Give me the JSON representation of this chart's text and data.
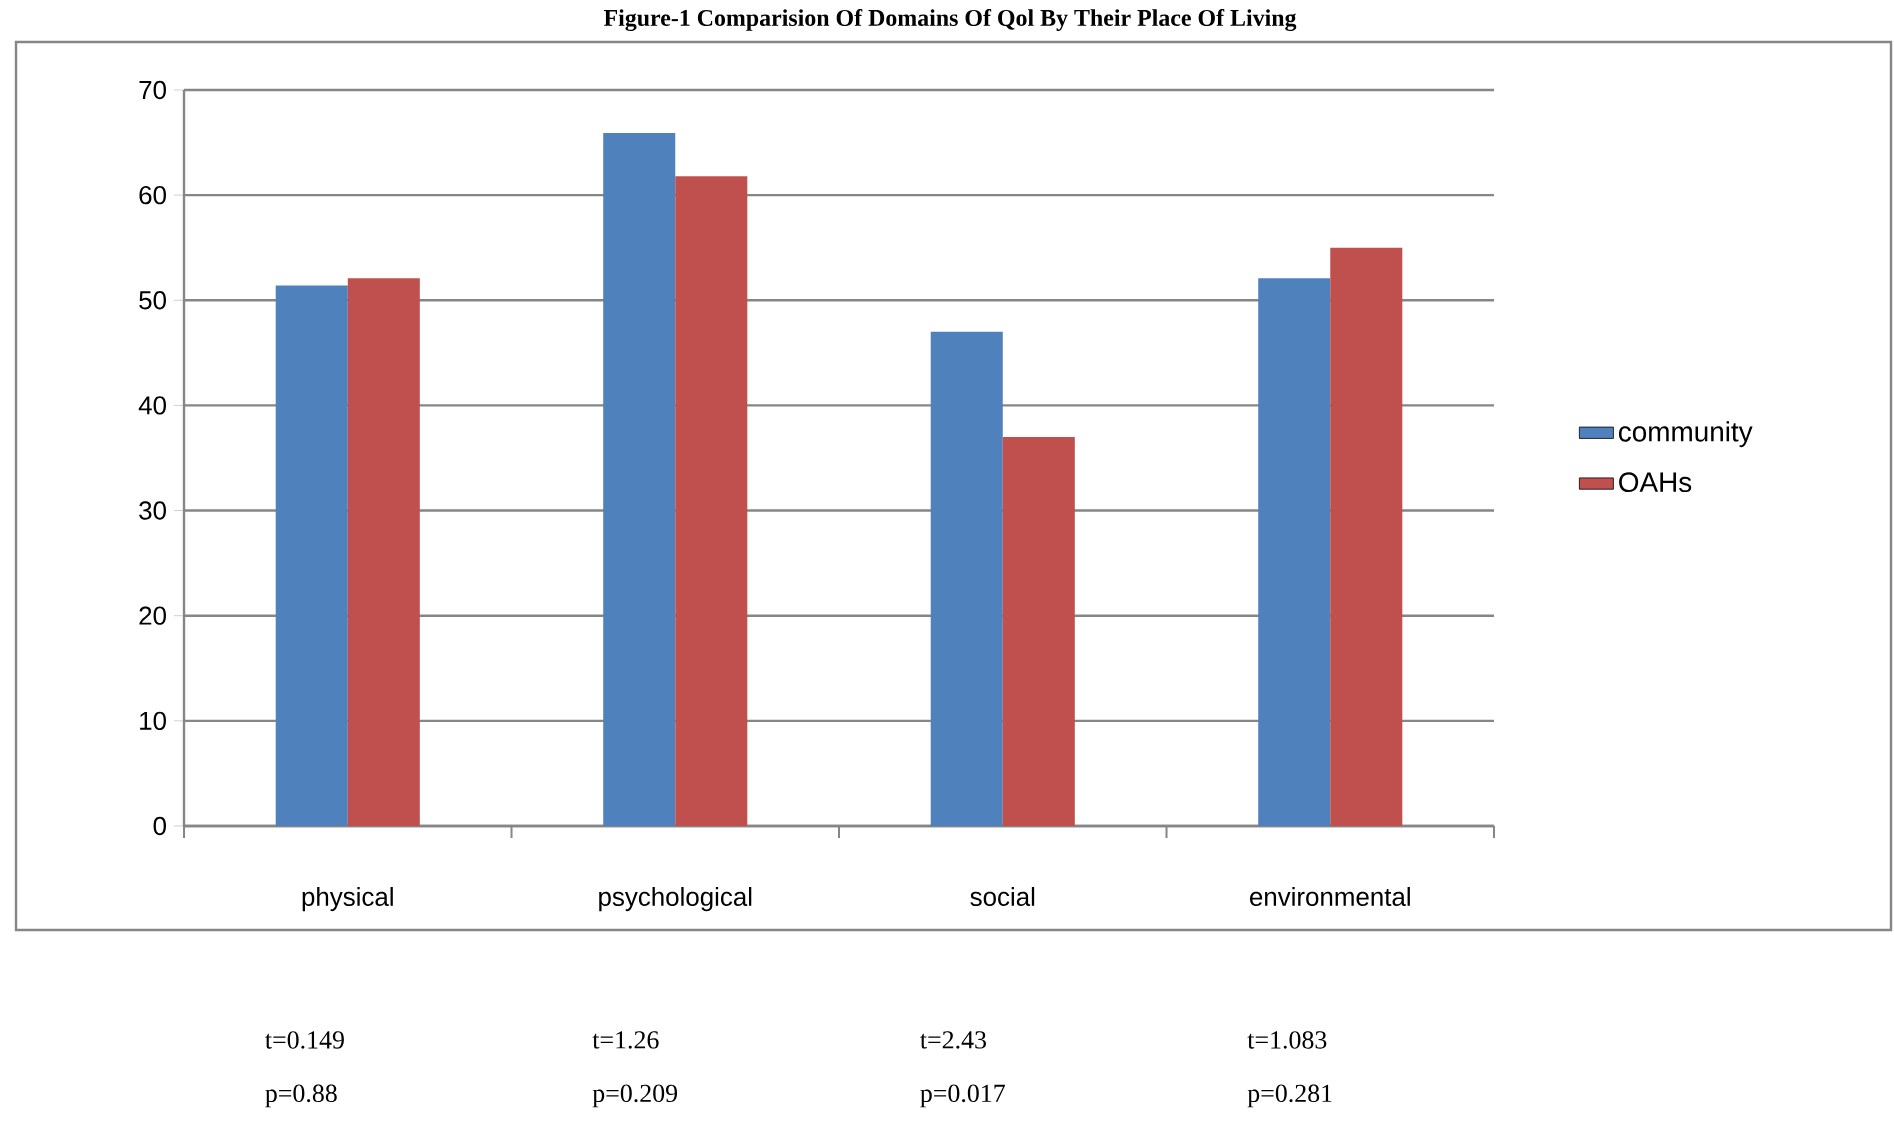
{
  "chart_data": {
    "type": "bar",
    "title": "Figure-1 Comparision Of Domains Of Qol By Their Place Of Living",
    "categories": [
      "physical",
      "psychological",
      "social",
      "environmental"
    ],
    "series": [
      {
        "name": "community",
        "color": "#4f81bd",
        "values": [
          51.4,
          65.9,
          47.0,
          52.1
        ]
      },
      {
        "name": "OAHs",
        "color": "#c0504d",
        "values": [
          52.1,
          61.8,
          37.0,
          55.0
        ]
      }
    ],
    "ylim": [
      0,
      70
    ],
    "yticks": [
      0,
      10,
      20,
      30,
      40,
      50,
      60,
      70
    ],
    "grid": "y",
    "legend": "right",
    "annotations": [
      "t=0.149",
      "t=1.26",
      "t=2.43",
      "t=1.083",
      "p=0.88",
      "p=0.209",
      "p=0.017",
      "p=0.281"
    ]
  }
}
